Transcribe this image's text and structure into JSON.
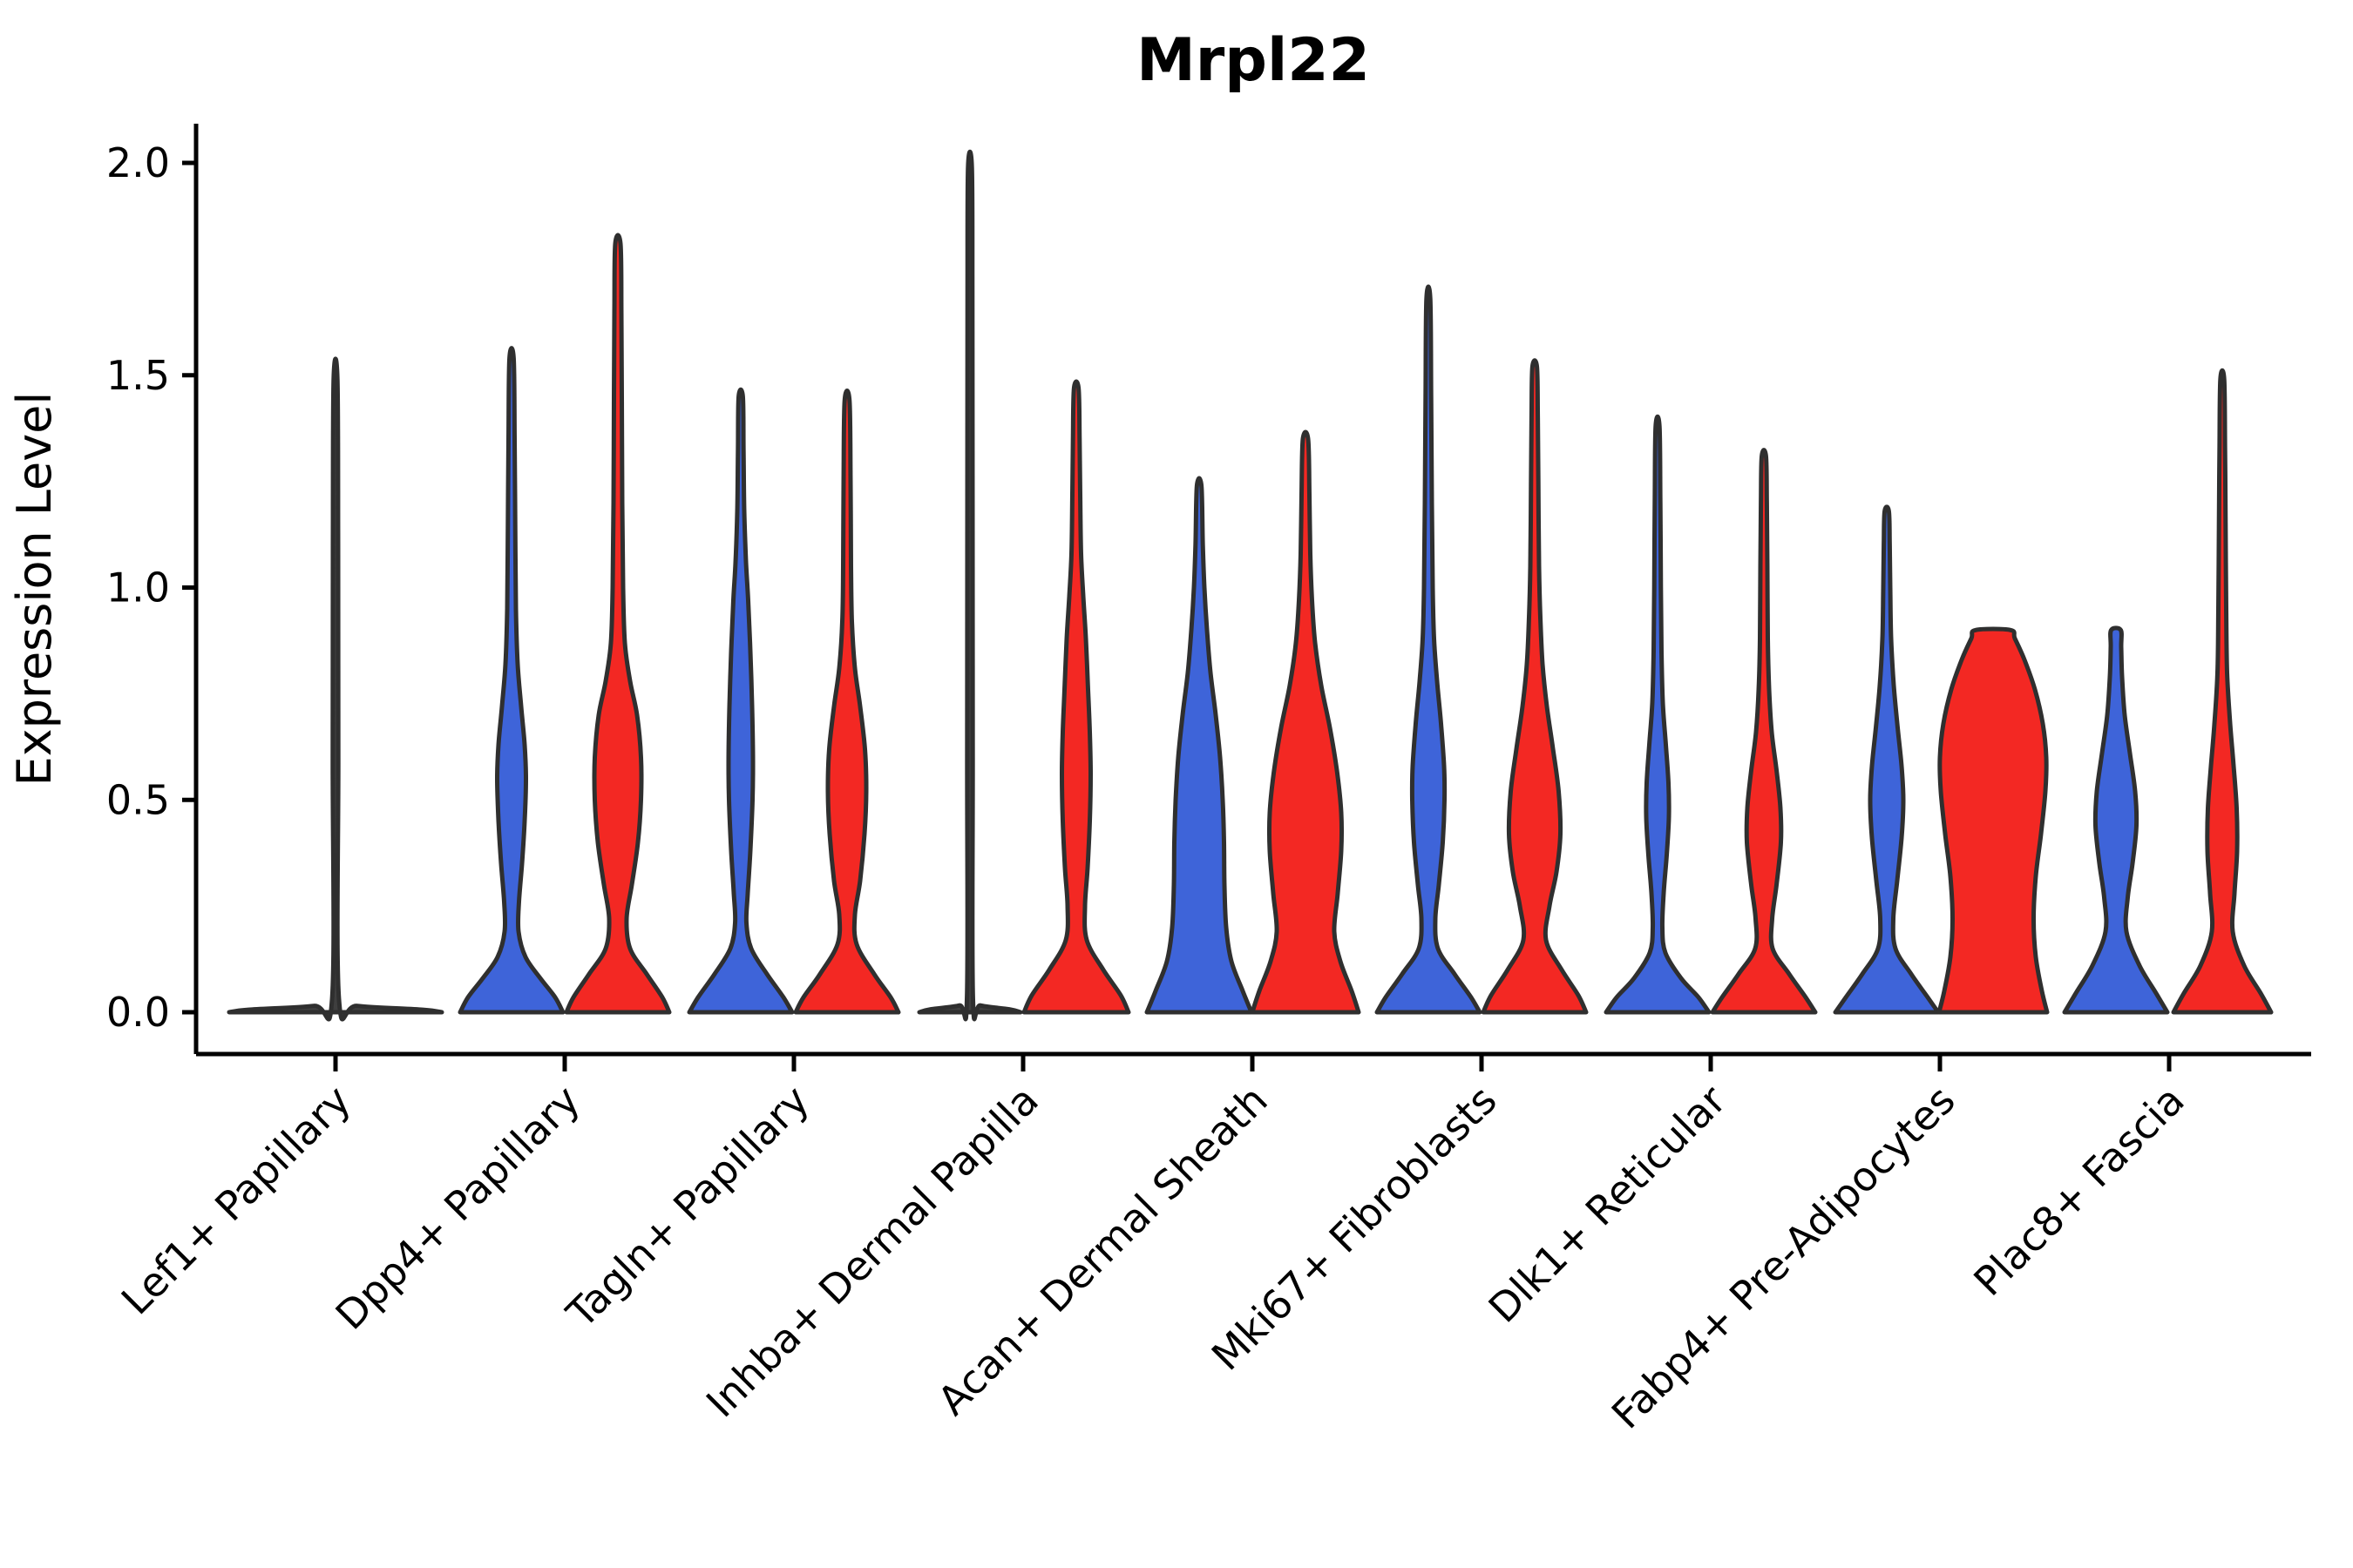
{
  "chart_data": {
    "type": "violin",
    "title": "Mrpl22",
    "ylabel": "Expression Level",
    "ylim": [
      0,
      2.05
    ],
    "grid": false,
    "x_tick_rotation": 45,
    "yticks": [
      {
        "value": 0.0,
        "label": "0.0"
      },
      {
        "value": 0.5,
        "label": "0.5"
      },
      {
        "value": 1.0,
        "label": "1.0"
      },
      {
        "value": 1.5,
        "label": "1.5"
      },
      {
        "value": 2.0,
        "label": "2.0"
      }
    ],
    "categories": [
      "Lef1+ Papillary",
      "Dpp4+ Papillary",
      "Tagln+ Papillary",
      "Inhba+ Dermal Papilla",
      "Acan+ Dermal Sheath",
      "Mki67+ Fibroblasts",
      "Dlk1+ Reticular",
      "Fabp4+ Pre-Adipocytes",
      "Plac8+ Fascia"
    ],
    "series": [
      {
        "name": "group-blue",
        "color": "#3E64D9"
      },
      {
        "name": "group-red",
        "color": "#F32823"
      }
    ],
    "colors": {
      "blue": "#3E64D9",
      "red": "#F32823",
      "collapsed": "#3f3f3f",
      "outline": "#2f2f2f",
      "axis": "#000000"
    },
    "violins": [
      {
        "id": "violin-lef1-papillary",
        "category_index": 0,
        "side": "single",
        "fill": "collapsed",
        "max": 1.49,
        "flat_top": false,
        "profile": [
          [
            0,
            122
          ],
          [
            0.006,
            100
          ],
          [
            0.015,
            25
          ],
          [
            0.03,
            4
          ],
          [
            0.6,
            3.2
          ],
          [
            1.1,
            3
          ],
          [
            1.49,
            2.2
          ]
        ]
      },
      {
        "id": "violin-dpp4-papillary-blue",
        "category_index": 1,
        "side": "blue",
        "fill": "blue",
        "max": 1.54,
        "flat_top": false,
        "profile": [
          [
            0,
            59
          ],
          [
            0.035,
            50
          ],
          [
            0.08,
            33
          ],
          [
            0.13,
            16
          ],
          [
            0.19,
            8
          ],
          [
            0.26,
            8.5
          ],
          [
            0.35,
            12
          ],
          [
            0.45,
            15
          ],
          [
            0.55,
            16.5
          ],
          [
            0.63,
            15
          ],
          [
            0.72,
            11
          ],
          [
            0.82,
            7
          ],
          [
            0.95,
            5
          ],
          [
            1.15,
            4.2
          ],
          [
            1.35,
            3.5
          ],
          [
            1.54,
            2.4
          ]
        ]
      },
      {
        "id": "violin-dpp4-papillary-red",
        "category_index": 1,
        "side": "red",
        "fill": "red",
        "max": 1.81,
        "flat_top": false,
        "profile": [
          [
            0,
            59
          ],
          [
            0.035,
            51
          ],
          [
            0.09,
            33
          ],
          [
            0.15,
            14
          ],
          [
            0.22,
            10
          ],
          [
            0.3,
            16
          ],
          [
            0.4,
            23
          ],
          [
            0.5,
            26.5
          ],
          [
            0.6,
            26.5
          ],
          [
            0.7,
            22
          ],
          [
            0.78,
            14
          ],
          [
            0.87,
            8
          ],
          [
            1.0,
            6
          ],
          [
            1.2,
            5
          ],
          [
            1.45,
            4.5
          ],
          [
            1.65,
            4
          ],
          [
            1.81,
            3
          ]
        ]
      },
      {
        "id": "violin-tagln-papillary-blue",
        "category_index": 2,
        "side": "blue",
        "fill": "blue",
        "max": 1.45,
        "flat_top": false,
        "profile": [
          [
            0,
            59
          ],
          [
            0.035,
            49
          ],
          [
            0.09,
            30
          ],
          [
            0.15,
            12
          ],
          [
            0.21,
            6.5
          ],
          [
            0.28,
            8
          ],
          [
            0.38,
            11
          ],
          [
            0.5,
            13.5
          ],
          [
            0.6,
            14
          ],
          [
            0.72,
            13
          ],
          [
            0.85,
            11
          ],
          [
            0.97,
            8.5
          ],
          [
            1.06,
            6
          ],
          [
            1.18,
            4
          ],
          [
            1.32,
            3.2
          ],
          [
            1.45,
            2.4
          ]
        ]
      },
      {
        "id": "violin-tagln-papillary-red",
        "category_index": 2,
        "side": "red",
        "fill": "red",
        "max": 1.44,
        "flat_top": false,
        "profile": [
          [
            0,
            59
          ],
          [
            0.035,
            50
          ],
          [
            0.09,
            31
          ],
          [
            0.16,
            11
          ],
          [
            0.23,
            9
          ],
          [
            0.31,
            15
          ],
          [
            0.42,
            20
          ],
          [
            0.52,
            22
          ],
          [
            0.62,
            20.5
          ],
          [
            0.72,
            15
          ],
          [
            0.81,
            9
          ],
          [
            0.92,
            5.5
          ],
          [
            1.05,
            4.5
          ],
          [
            1.25,
            4
          ],
          [
            1.44,
            2.8
          ]
        ]
      },
      {
        "id": "violin-inhba-dermal-papilla-blue",
        "category_index": 3,
        "side": "blue",
        "fill": "collapsed",
        "max": 1.99,
        "flat_top": false,
        "profile": [
          [
            0,
            58
          ],
          [
            0.007,
            45
          ],
          [
            0.016,
            12
          ],
          [
            0.03,
            3.5
          ],
          [
            0.6,
            3.2
          ],
          [
            1.2,
            3
          ],
          [
            1.7,
            2.8
          ],
          [
            1.99,
            2.2
          ]
        ]
      },
      {
        "id": "violin-inhba-dermal-papilla-red",
        "category_index": 3,
        "side": "red",
        "fill": "red",
        "max": 1.47,
        "flat_top": false,
        "profile": [
          [
            0,
            60
          ],
          [
            0.04,
            51
          ],
          [
            0.1,
            31
          ],
          [
            0.17,
            12
          ],
          [
            0.25,
            10
          ],
          [
            0.34,
            13
          ],
          [
            0.45,
            15.5
          ],
          [
            0.56,
            16.5
          ],
          [
            0.66,
            15.5
          ],
          [
            0.76,
            13.5
          ],
          [
            0.88,
            11
          ],
          [
            0.98,
            8
          ],
          [
            1.08,
            5.5
          ],
          [
            1.22,
            4.5
          ],
          [
            1.35,
            3.8
          ],
          [
            1.47,
            2.6
          ]
        ]
      },
      {
        "id": "violin-acan-dermal-sheath-blue",
        "category_index": 4,
        "side": "blue",
        "fill": "blue",
        "max": 1.24,
        "flat_top": false,
        "profile": [
          [
            0,
            60
          ],
          [
            0.05,
            50
          ],
          [
            0.12,
            37
          ],
          [
            0.2,
            31
          ],
          [
            0.3,
            29
          ],
          [
            0.4,
            28.5
          ],
          [
            0.5,
            27
          ],
          [
            0.6,
            24
          ],
          [
            0.7,
            19
          ],
          [
            0.8,
            13
          ],
          [
            0.9,
            9
          ],
          [
            1.0,
            6
          ],
          [
            1.1,
            4.2
          ],
          [
            1.24,
            2.6
          ]
        ]
      },
      {
        "id": "violin-acan-dermal-sheath-red",
        "category_index": 4,
        "side": "red",
        "fill": "red",
        "max": 1.35,
        "flat_top": false,
        "profile": [
          [
            0,
            61
          ],
          [
            0.05,
            53
          ],
          [
            0.12,
            40
          ],
          [
            0.19,
            33
          ],
          [
            0.28,
            37
          ],
          [
            0.38,
            41
          ],
          [
            0.47,
            41
          ],
          [
            0.57,
            36
          ],
          [
            0.67,
            28
          ],
          [
            0.77,
            18
          ],
          [
            0.87,
            11
          ],
          [
            0.97,
            7.5
          ],
          [
            1.08,
            5.5
          ],
          [
            1.22,
            4.5
          ],
          [
            1.35,
            3
          ]
        ]
      },
      {
        "id": "violin-mki67-fibroblasts-blue",
        "category_index": 5,
        "side": "blue",
        "fill": "blue",
        "max": 1.68,
        "flat_top": false,
        "profile": [
          [
            0,
            59
          ],
          [
            0.035,
            49
          ],
          [
            0.09,
            30
          ],
          [
            0.15,
            11
          ],
          [
            0.22,
            8
          ],
          [
            0.3,
            12
          ],
          [
            0.4,
            16.5
          ],
          [
            0.5,
            18.5
          ],
          [
            0.58,
            18
          ],
          [
            0.68,
            14.5
          ],
          [
            0.78,
            10
          ],
          [
            0.88,
            6.5
          ],
          [
            1.0,
            5
          ],
          [
            1.2,
            4
          ],
          [
            1.45,
            3.2
          ],
          [
            1.68,
            2.2
          ]
        ]
      },
      {
        "id": "violin-mki67-fibroblasts-red",
        "category_index": 5,
        "side": "red",
        "fill": "red",
        "max": 1.52,
        "flat_top": false,
        "profile": [
          [
            0,
            59
          ],
          [
            0.04,
            50
          ],
          [
            0.1,
            31
          ],
          [
            0.17,
            13
          ],
          [
            0.25,
            17
          ],
          [
            0.33,
            25
          ],
          [
            0.42,
            29.5
          ],
          [
            0.52,
            27.5
          ],
          [
            0.62,
            21
          ],
          [
            0.72,
            14
          ],
          [
            0.82,
            9
          ],
          [
            0.93,
            6.5
          ],
          [
            1.05,
            5
          ],
          [
            1.25,
            4.2
          ],
          [
            1.4,
            3.6
          ],
          [
            1.52,
            2.6
          ]
        ]
      },
      {
        "id": "violin-dlk1-reticular-blue",
        "category_index": 6,
        "side": "blue",
        "fill": "blue",
        "max": 1.38,
        "flat_top": false,
        "profile": [
          [
            0,
            59
          ],
          [
            0.035,
            47
          ],
          [
            0.08,
            27
          ],
          [
            0.14,
            9
          ],
          [
            0.2,
            5.5
          ],
          [
            0.28,
            7
          ],
          [
            0.37,
            10.5
          ],
          [
            0.46,
            13
          ],
          [
            0.54,
            12.5
          ],
          [
            0.63,
            9.5
          ],
          [
            0.73,
            6
          ],
          [
            0.85,
            4.5
          ],
          [
            1.0,
            3.8
          ],
          [
            1.2,
            3.2
          ],
          [
            1.38,
            2.2
          ]
        ]
      },
      {
        "id": "violin-dlk1-reticular-red",
        "category_index": 6,
        "side": "red",
        "fill": "red",
        "max": 1.31,
        "flat_top": false,
        "profile": [
          [
            0,
            59
          ],
          [
            0.035,
            48
          ],
          [
            0.09,
            29
          ],
          [
            0.15,
            10
          ],
          [
            0.22,
            9.5
          ],
          [
            0.3,
            14.5
          ],
          [
            0.4,
            19.5
          ],
          [
            0.48,
            19
          ],
          [
            0.57,
            14.5
          ],
          [
            0.66,
            9
          ],
          [
            0.76,
            6
          ],
          [
            0.88,
            4.5
          ],
          [
            1.05,
            4
          ],
          [
            1.2,
            3.4
          ],
          [
            1.31,
            2.4
          ]
        ]
      },
      {
        "id": "violin-fabp4-pre-adipocytes-blue",
        "category_index": 7,
        "side": "blue",
        "fill": "blue",
        "max": 1.18,
        "flat_top": false,
        "profile": [
          [
            0,
            59
          ],
          [
            0.035,
            47
          ],
          [
            0.09,
            28
          ],
          [
            0.15,
            10
          ],
          [
            0.22,
            7.5
          ],
          [
            0.31,
            12
          ],
          [
            0.41,
            17
          ],
          [
            0.5,
            19
          ],
          [
            0.58,
            17
          ],
          [
            0.67,
            12.5
          ],
          [
            0.77,
            8
          ],
          [
            0.88,
            5
          ],
          [
            1.0,
            4
          ],
          [
            1.1,
            3.4
          ],
          [
            1.18,
            2.4
          ]
        ]
      },
      {
        "id": "violin-fabp4-pre-adipocytes-red",
        "category_index": 7,
        "side": "red",
        "fill": "red",
        "max": 0.9,
        "flat_top": true,
        "profile": [
          [
            0,
            62
          ],
          [
            0.05,
            56
          ],
          [
            0.13,
            49
          ],
          [
            0.22,
            46.5
          ],
          [
            0.32,
            49
          ],
          [
            0.42,
            55
          ],
          [
            0.52,
            60
          ],
          [
            0.6,
            61
          ],
          [
            0.68,
            57
          ],
          [
            0.76,
            48
          ],
          [
            0.83,
            36
          ],
          [
            0.88,
            25
          ],
          [
            0.9,
            20
          ]
        ]
      },
      {
        "id": "violin-plac8-fascia-blue",
        "category_index": 8,
        "side": "blue",
        "fill": "blue",
        "max": 0.9,
        "flat_top": true,
        "profile": [
          [
            0,
            59
          ],
          [
            0.045,
            46
          ],
          [
            0.11,
            27
          ],
          [
            0.19,
            12
          ],
          [
            0.27,
            13.5
          ],
          [
            0.35,
            19
          ],
          [
            0.44,
            23.5
          ],
          [
            0.52,
            22
          ],
          [
            0.61,
            16
          ],
          [
            0.7,
            10
          ],
          [
            0.79,
            7
          ],
          [
            0.86,
            6
          ],
          [
            0.9,
            5.5
          ]
        ]
      },
      {
        "id": "violin-plac8-fascia-red",
        "category_index": 8,
        "side": "red",
        "fill": "red",
        "max": 1.49,
        "flat_top": false,
        "profile": [
          [
            0,
            56
          ],
          [
            0.045,
            44
          ],
          [
            0.11,
            25
          ],
          [
            0.19,
            12
          ],
          [
            0.28,
            14
          ],
          [
            0.38,
            17
          ],
          [
            0.48,
            16.5
          ],
          [
            0.58,
            13
          ],
          [
            0.68,
            9
          ],
          [
            0.8,
            5.5
          ],
          [
            0.95,
            4.5
          ],
          [
            1.15,
            3.8
          ],
          [
            1.32,
            3.2
          ],
          [
            1.49,
            2.2
          ]
        ]
      }
    ]
  }
}
